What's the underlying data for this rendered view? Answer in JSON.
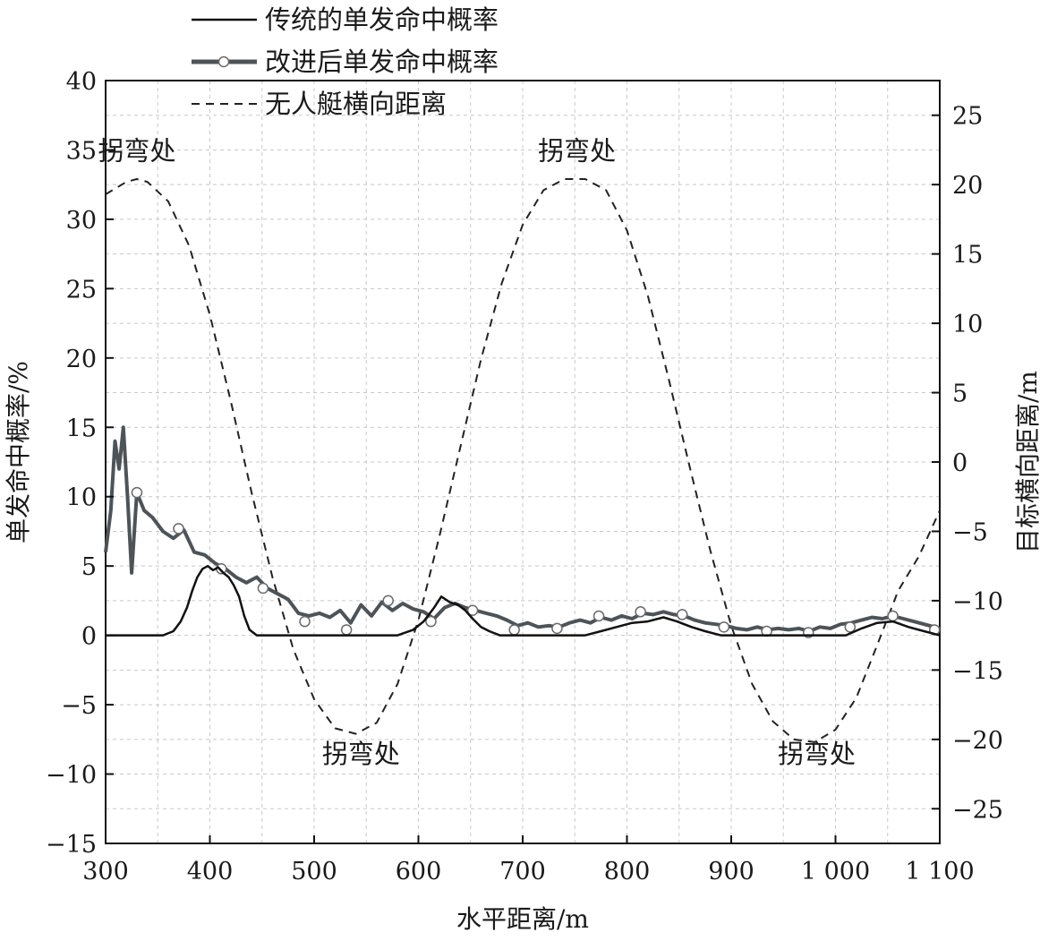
{
  "chart_data": {
    "type": "line",
    "xlabel": "水平距离/m",
    "ylabel_left": "单发命中概率/%",
    "ylabel_right": "目标横向距离/m",
    "xlim": [
      300,
      1100
    ],
    "ylim_left": [
      -15,
      40
    ],
    "ylim_right": [
      -27.5,
      27.5
    ],
    "x_ticks": [
      300,
      400,
      500,
      600,
      700,
      800,
      900,
      1000,
      1100
    ],
    "x_tick_labels": [
      "300",
      "400",
      "500",
      "600",
      "700",
      "800",
      "900",
      "1 000",
      "1 100"
    ],
    "y_left_ticks": [
      40,
      35,
      30,
      25,
      20,
      15,
      10,
      5,
      0,
      -5,
      -10,
      -15
    ],
    "y_left_tick_labels": [
      "40",
      "35",
      "30",
      "25",
      "20",
      "15",
      "10",
      "5",
      "0",
      "−5",
      "−10",
      "−15"
    ],
    "y_right_ticks": [
      25,
      20,
      15,
      10,
      5,
      0,
      -5,
      -10,
      -15,
      -20,
      -25
    ],
    "y_right_tick_labels": [
      "25",
      "20",
      "15",
      "10",
      "5",
      "0",
      "−5",
      "−10",
      "−15",
      "−20",
      "−25"
    ],
    "grid": true,
    "legend_position": "top-left",
    "series": [
      {
        "name": "传统的单发命中概率",
        "axis": "left",
        "color": "#111111",
        "x": [
          300,
          355,
          365,
          372,
          378,
          383,
          388,
          393,
          398,
          403,
          408,
          413,
          418,
          423,
          428,
          433,
          438,
          445,
          580,
          595,
          605,
          615,
          622,
          630,
          638,
          645,
          652,
          660,
          668,
          678,
          760,
          775,
          790,
          805,
          820,
          835,
          848,
          862,
          875,
          890,
          1010,
          1025,
          1040,
          1055,
          1070,
          1085,
          1100
        ],
        "y": [
          0,
          0,
          0.3,
          1.0,
          2.0,
          3.2,
          4.2,
          4.8,
          5.0,
          4.7,
          4.9,
          4.5,
          4.2,
          3.6,
          2.8,
          1.4,
          0.4,
          0,
          0,
          0.4,
          1.0,
          2.0,
          2.8,
          2.4,
          2.2,
          1.8,
          1.2,
          0.6,
          0.3,
          0,
          0,
          0.3,
          0.6,
          0.9,
          1.0,
          1.3,
          1.0,
          0.6,
          0.3,
          0,
          0,
          0.5,
          0.9,
          1.0,
          0.6,
          0.3,
          0
        ]
      },
      {
        "name": "改进后单发命中概率",
        "axis": "left",
        "color": "#4d5459",
        "x": [
          300,
          305,
          309,
          313,
          317,
          321,
          325,
          330,
          337,
          345,
          355,
          365,
          375,
          385,
          395,
          405,
          415,
          425,
          435,
          445,
          455,
          465,
          475,
          485,
          495,
          505,
          515,
          525,
          535,
          545,
          555,
          565,
          575,
          585,
          595,
          605,
          615,
          625,
          635,
          645,
          655,
          665,
          675,
          685,
          695,
          705,
          715,
          725,
          735,
          745,
          755,
          765,
          775,
          785,
          795,
          805,
          815,
          825,
          835,
          845,
          855,
          865,
          875,
          885,
          895,
          905,
          915,
          925,
          935,
          945,
          955,
          965,
          975,
          985,
          995,
          1005,
          1015,
          1025,
          1035,
          1045,
          1055,
          1065,
          1075,
          1085,
          1095,
          1100
        ],
        "y": [
          6.0,
          9.0,
          14.0,
          12.0,
          15.0,
          10.0,
          4.5,
          10.3,
          9.0,
          8.5,
          7.5,
          7.0,
          7.6,
          6.0,
          5.8,
          5.2,
          4.8,
          4.2,
          3.8,
          4.2,
          3.4,
          3.0,
          2.6,
          1.6,
          1.4,
          1.6,
          1.3,
          1.8,
          0.9,
          2.2,
          1.4,
          2.4,
          1.8,
          2.3,
          1.9,
          1.7,
          1.2,
          2.0,
          2.3,
          2.0,
          1.8,
          1.6,
          1.4,
          1.1,
          0.7,
          0.9,
          0.6,
          0.7,
          0.6,
          0.9,
          1.1,
          0.9,
          1.3,
          1.1,
          1.4,
          1.2,
          1.6,
          1.5,
          1.7,
          1.5,
          1.4,
          1.1,
          0.9,
          0.8,
          0.7,
          0.5,
          0.4,
          0.6,
          0.4,
          0.5,
          0.4,
          0.5,
          0.3,
          0.6,
          0.5,
          0.8,
          0.9,
          1.1,
          1.3,
          1.2,
          1.4,
          1.2,
          1.0,
          0.8,
          0.6,
          0.5
        ],
        "markers": {
          "x": [
            330,
            370,
            411,
            451,
            491,
            531,
            571,
            612,
            652,
            692,
            733,
            773,
            813,
            853,
            893,
            934,
            974,
            1014,
            1055,
            1095
          ],
          "y": [
            10.3,
            7.7,
            4.8,
            3.4,
            1.0,
            0.4,
            2.5,
            1.0,
            1.8,
            0.4,
            0.5,
            1.4,
            1.7,
            1.5,
            0.6,
            0.3,
            0.2,
            0.6,
            1.4,
            0.4
          ]
        }
      },
      {
        "name": "无人艇横向距离",
        "axis": "right",
        "color": "#222222",
        "dash": "9,7",
        "x": [
          300,
          320,
          330,
          340,
          360,
          380,
          400,
          420,
          440,
          460,
          480,
          500,
          520,
          540,
          560,
          580,
          600,
          620,
          640,
          660,
          680,
          700,
          720,
          740,
          760,
          780,
          800,
          820,
          840,
          860,
          880,
          900,
          920,
          940,
          960,
          980,
          1000,
          1020,
          1040,
          1060,
          1080,
          1100
        ],
        "y": [
          19.3,
          20.2,
          20.4,
          20.2,
          18.8,
          15.6,
          10.6,
          4.4,
          -2.2,
          -8.3,
          -13.5,
          -17.1,
          -19.2,
          -19.6,
          -18.8,
          -16.0,
          -11.4,
          -5.4,
          1.0,
          7.4,
          12.9,
          17.1,
          19.6,
          20.4,
          20.4,
          19.6,
          16.7,
          12.0,
          6.0,
          -0.3,
          -6.4,
          -11.8,
          -16.0,
          -18.7,
          -20.0,
          -20.2,
          -19.3,
          -17.0,
          -13.2,
          -9.3,
          -6.8,
          -3.5
        ]
      }
    ],
    "annotations": [
      {
        "text": "拐弯处",
        "x": 330,
        "y": 34.3
      },
      {
        "text": "拐弯处",
        "x": 752,
        "y": 34.3
      },
      {
        "text": "拐弯处",
        "x": 545,
        "y": -9.2
      },
      {
        "text": "拐弯处",
        "x": 982,
        "y": -9.2
      }
    ]
  }
}
